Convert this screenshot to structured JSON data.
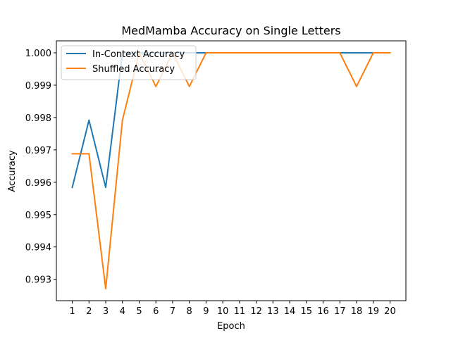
{
  "chart_data": {
    "type": "line",
    "title": "MedMamba Accuracy on Single Letters",
    "xlabel": "Epoch",
    "ylabel": "Accuracy",
    "x": [
      1,
      2,
      3,
      4,
      5,
      6,
      7,
      8,
      9,
      10,
      11,
      12,
      13,
      14,
      15,
      16,
      17,
      18,
      19,
      20
    ],
    "xticks": [
      1,
      2,
      3,
      4,
      5,
      6,
      7,
      8,
      9,
      10,
      11,
      12,
      13,
      14,
      15,
      16,
      17,
      18,
      19,
      20
    ],
    "yticks": [
      0.993,
      0.994,
      0.995,
      0.996,
      0.997,
      0.998,
      0.999,
      1.0
    ],
    "ytick_labels": [
      "0.993",
      "0.994",
      "0.995",
      "0.996",
      "0.997",
      "0.998",
      "0.999",
      "1.000"
    ],
    "xlim": [
      0.05,
      20.95
    ],
    "ylim": [
      0.99234,
      1.00037
    ],
    "grid": false,
    "legend_position": "upper-left",
    "series": [
      {
        "name": "In-Context Accuracy",
        "color": "#1f77b4",
        "values": [
          0.99584,
          0.99792,
          0.99584,
          1.0,
          1.0,
          1.0,
          1.0,
          1.0,
          1.0,
          1.0,
          1.0,
          1.0,
          1.0,
          1.0,
          1.0,
          1.0,
          1.0,
          1.0,
          1.0,
          1.0
        ]
      },
      {
        "name": "Shuffled Accuracy",
        "color": "#ff7f0e",
        "values": [
          0.99688,
          0.99688,
          0.99271,
          0.99792,
          1.0,
          0.99896,
          1.0,
          0.99896,
          1.0,
          1.0,
          1.0,
          1.0,
          1.0,
          1.0,
          1.0,
          1.0,
          1.0,
          0.99896,
          1.0,
          1.0
        ]
      }
    ]
  }
}
